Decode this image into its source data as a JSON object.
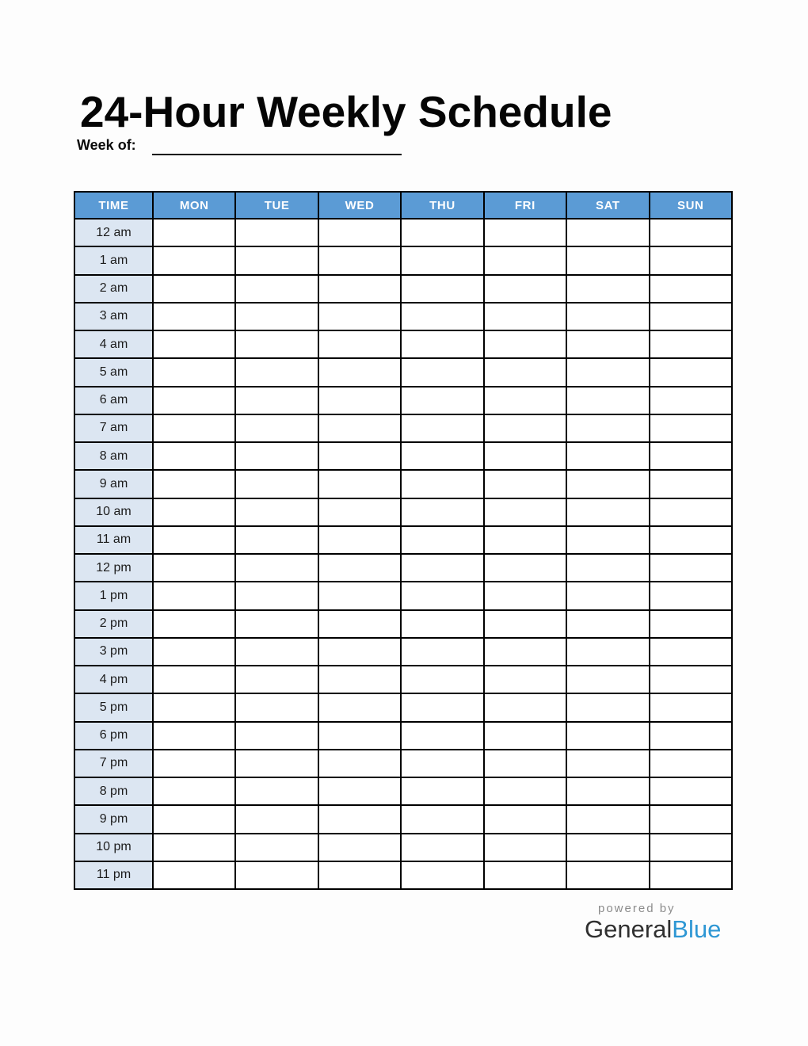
{
  "title": "24-Hour Weekly Schedule",
  "week_of_label": "Week of:",
  "week_of_value": "",
  "table": {
    "columns": [
      "TIME",
      "MON",
      "TUE",
      "WED",
      "THU",
      "FRI",
      "SAT",
      "SUN"
    ],
    "times": [
      "12 am",
      "1 am",
      "2 am",
      "3 am",
      "4 am",
      "5 am",
      "6 am",
      "7 am",
      "8 am",
      "9 am",
      "10 am",
      "11 am",
      "12 pm",
      "1 pm",
      "2 pm",
      "3 pm",
      "4 pm",
      "5 pm",
      "6 pm",
      "7 pm",
      "8 pm",
      "9 pm",
      "10 pm",
      "11 pm"
    ],
    "cell_values": []
  },
  "footer": {
    "powered_by": "powered by",
    "brand_part1": "General",
    "brand_part2": "Blue"
  },
  "colors": {
    "header_bg": "#5B9BD5",
    "time_cell_bg": "#DCE6F2",
    "border": "#000000",
    "brand_blue": "#2E97D4",
    "powered_by_gray": "#8C8C8C"
  }
}
